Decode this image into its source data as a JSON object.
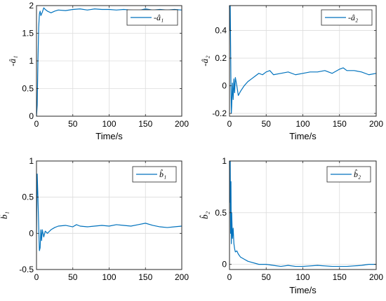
{
  "chart_data": [
    {
      "type": "line",
      "xlabel": "Time/s",
      "ylabel": "-â₁",
      "xlim": [
        0,
        200
      ],
      "ylim": [
        0,
        2
      ],
      "xticks": [
        0,
        50,
        100,
        150,
        200
      ],
      "yticks": [
        0,
        0.5,
        1,
        1.5,
        2
      ],
      "xtick_labels": [
        "0",
        "50",
        "100",
        "150",
        "200"
      ],
      "ytick_labels": [
        "0",
        "0.5",
        "1",
        "1.5",
        "2"
      ],
      "grid": true,
      "legend_position": "top-right",
      "series": [
        {
          "name": "-â₁",
          "color": "#0072BD",
          "x": [
            0,
            1,
            2,
            3,
            4,
            5,
            6,
            8,
            10,
            12,
            15,
            20,
            25,
            30,
            40,
            50,
            60,
            70,
            80,
            90,
            100,
            110,
            120,
            130,
            140,
            150,
            160,
            170,
            180,
            190,
            200
          ],
          "y": [
            0,
            0.2,
            1.0,
            1.6,
            1.85,
            1.9,
            1.82,
            1.88,
            1.96,
            1.93,
            1.9,
            1.87,
            1.9,
            1.92,
            1.91,
            1.93,
            1.94,
            1.92,
            1.94,
            1.93,
            1.93,
            1.92,
            1.93,
            1.92,
            1.91,
            1.94,
            1.92,
            1.93,
            1.92,
            1.93,
            1.92
          ]
        }
      ]
    },
    {
      "type": "line",
      "xlabel": "Time/s",
      "ylabel": "-â₂",
      "xlim": [
        0,
        200
      ],
      "ylim": [
        -0.22,
        0.58
      ],
      "xticks": [
        0,
        50,
        100,
        150,
        200
      ],
      "yticks": [
        -0.2,
        0,
        0.2,
        0.4
      ],
      "xtick_labels": [
        "0",
        "50",
        "100",
        "150",
        "200"
      ],
      "ytick_labels": [
        "-0.2",
        "0",
        "0.2",
        "0.4"
      ],
      "grid": true,
      "legend_position": "top-right",
      "series": [
        {
          "name": "-â₂",
          "color": "#0072BD",
          "x": [
            0,
            0.5,
            1,
            1.5,
            2,
            2.5,
            3,
            4,
            5,
            6,
            7,
            8,
            10,
            12,
            15,
            20,
            25,
            30,
            35,
            40,
            45,
            50,
            55,
            60,
            70,
            80,
            90,
            100,
            110,
            120,
            130,
            140,
            150,
            155,
            160,
            170,
            180,
            190,
            200
          ],
          "y": [
            0.58,
            0.4,
            0.58,
            0.3,
            0.0,
            -0.2,
            -0.15,
            0.02,
            -0.1,
            0.05,
            -0.05,
            0.06,
            0.0,
            -0.07,
            -0.04,
            0.0,
            0.03,
            0.05,
            0.07,
            0.09,
            0.08,
            0.1,
            0.11,
            0.08,
            0.09,
            0.1,
            0.08,
            0.09,
            0.1,
            0.1,
            0.11,
            0.09,
            0.12,
            0.13,
            0.11,
            0.11,
            0.1,
            0.08,
            0.09
          ]
        }
      ]
    },
    {
      "type": "line",
      "xlabel": "",
      "ylabel": "b̂₁",
      "xlim": [
        0,
        200
      ],
      "ylim": [
        -0.5,
        1
      ],
      "xticks": [
        0,
        50,
        100,
        150,
        200
      ],
      "yticks": [
        -0.5,
        0,
        0.5,
        1
      ],
      "xtick_labels": [
        "0",
        "50",
        "100",
        "150",
        "200"
      ],
      "ytick_labels": [
        "-0.5",
        "0",
        "0.5",
        "1"
      ],
      "grid": true,
      "legend_position": "top-right",
      "series": [
        {
          "name": "b̂₁",
          "color": "#0072BD",
          "x": [
            0,
            1,
            2,
            3,
            4,
            5,
            6,
            7,
            8,
            10,
            12,
            15,
            20,
            25,
            30,
            40,
            50,
            55,
            60,
            70,
            80,
            90,
            100,
            110,
            120,
            130,
            140,
            150,
            160,
            170,
            180,
            190,
            200
          ],
          "y": [
            0.0,
            0.82,
            0.5,
            0.1,
            -0.24,
            -0.2,
            0.05,
            -0.1,
            0.05,
            -0.05,
            0.03,
            0.0,
            0.05,
            0.08,
            0.1,
            0.11,
            0.09,
            0.12,
            0.1,
            0.09,
            0.1,
            0.11,
            0.1,
            0.12,
            0.11,
            0.1,
            0.12,
            0.14,
            0.11,
            0.09,
            0.08,
            0.09,
            0.1
          ]
        }
      ]
    },
    {
      "type": "line",
      "xlabel": "Time/s",
      "ylabel": "b̂₂",
      "xlim": [
        0,
        200
      ],
      "ylim": [
        -0.05,
        1
      ],
      "xticks": [
        0,
        50,
        100,
        150,
        200
      ],
      "yticks": [
        0,
        0.5,
        1
      ],
      "xtick_labels": [
        "0",
        "50",
        "100",
        "150",
        "200"
      ],
      "ytick_labels": [
        "0",
        "0.5",
        "1"
      ],
      "grid": true,
      "legend_position": "top-right",
      "series": [
        {
          "name": "b̂₂",
          "color": "#0072BD",
          "x": [
            0,
            0.5,
            1,
            1.5,
            2,
            2.5,
            3,
            4,
            5,
            6,
            7,
            8,
            10,
            12,
            15,
            20,
            25,
            30,
            40,
            50,
            60,
            70,
            80,
            90,
            100,
            120,
            140,
            160,
            180,
            190,
            200
          ],
          "y": [
            1.0,
            0.6,
            1.0,
            0.3,
            0.8,
            0.2,
            0.5,
            0.25,
            0.35,
            0.2,
            0.15,
            0.12,
            0.13,
            0.1,
            0.07,
            0.05,
            0.03,
            0.02,
            0.0,
            0.0,
            -0.01,
            -0.02,
            -0.01,
            -0.02,
            -0.02,
            -0.01,
            -0.02,
            -0.02,
            -0.01,
            0.0,
            0.0
          ]
        }
      ]
    }
  ]
}
